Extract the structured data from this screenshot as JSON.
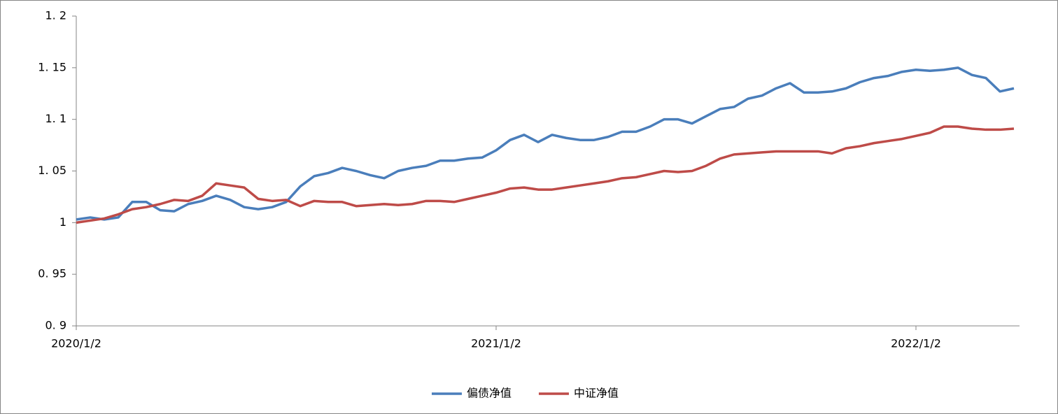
{
  "chart_data": {
    "type": "line",
    "categories": [
      "2020/1/2",
      null,
      null,
      null,
      null,
      null,
      null,
      null,
      null,
      null,
      null,
      null,
      null,
      null,
      null,
      null,
      null,
      null,
      null,
      null,
      null,
      null,
      null,
      null,
      null,
      null,
      null,
      null,
      null,
      null,
      "2021/1/2",
      null,
      null,
      null,
      null,
      null,
      null,
      null,
      null,
      null,
      null,
      null,
      null,
      null,
      null,
      null,
      null,
      null,
      null,
      null,
      null,
      null,
      null,
      null,
      null,
      null,
      null,
      null,
      null,
      null,
      "2022/1/2",
      null,
      null,
      null,
      null,
      null,
      null,
      null
    ],
    "series": [
      {
        "name": "偏债净值",
        "color": "#4a7ebb",
        "values": [
          1.003,
          1.005,
          1.003,
          1.005,
          1.02,
          1.02,
          1.012,
          1.011,
          1.018,
          1.021,
          1.026,
          1.022,
          1.015,
          1.013,
          1.015,
          1.02,
          1.035,
          1.045,
          1.048,
          1.053,
          1.05,
          1.046,
          1.043,
          1.05,
          1.053,
          1.055,
          1.06,
          1.06,
          1.062,
          1.063,
          1.07,
          1.08,
          1.085,
          1.078,
          1.085,
          1.082,
          1.08,
          1.08,
          1.083,
          1.088,
          1.088,
          1.093,
          1.1,
          1.1,
          1.096,
          1.103,
          1.11,
          1.112,
          1.12,
          1.123,
          1.13,
          1.135,
          1.126,
          1.126,
          1.127,
          1.13,
          1.136,
          1.14,
          1.142,
          1.146,
          1.148,
          1.147,
          1.148,
          1.15,
          1.143,
          1.14,
          1.127,
          1.13
        ]
      },
      {
        "name": "中证净值",
        "color": "#be4b48",
        "values": [
          1.0,
          1.002,
          1.004,
          1.008,
          1.013,
          1.015,
          1.018,
          1.022,
          1.021,
          1.026,
          1.038,
          1.036,
          1.034,
          1.023,
          1.021,
          1.022,
          1.016,
          1.021,
          1.02,
          1.02,
          1.016,
          1.017,
          1.018,
          1.017,
          1.018,
          1.021,
          1.021,
          1.02,
          1.023,
          1.026,
          1.029,
          1.033,
          1.034,
          1.032,
          1.032,
          1.034,
          1.036,
          1.038,
          1.04,
          1.043,
          1.044,
          1.047,
          1.05,
          1.049,
          1.05,
          1.055,
          1.062,
          1.066,
          1.067,
          1.068,
          1.069,
          1.069,
          1.069,
          1.069,
          1.067,
          1.072,
          1.074,
          1.077,
          1.079,
          1.081,
          1.084,
          1.087,
          1.093,
          1.093,
          1.091,
          1.09,
          1.09,
          1.091
        ]
      }
    ],
    "ylim": [
      0.9,
      1.2
    ],
    "yticks": [
      {
        "value": 0.9,
        "label": "0. 9"
      },
      {
        "value": 0.95,
        "label": "0. 95"
      },
      1,
      {
        "value": 1.05,
        "label": "1. 05"
      },
      {
        "value": 1.1,
        "label": "1. 1"
      },
      {
        "value": 1.15,
        "label": "1. 15"
      },
      {
        "value": 1.2,
        "label": "1. 2"
      }
    ],
    "grid": false,
    "legend": "bottom"
  }
}
